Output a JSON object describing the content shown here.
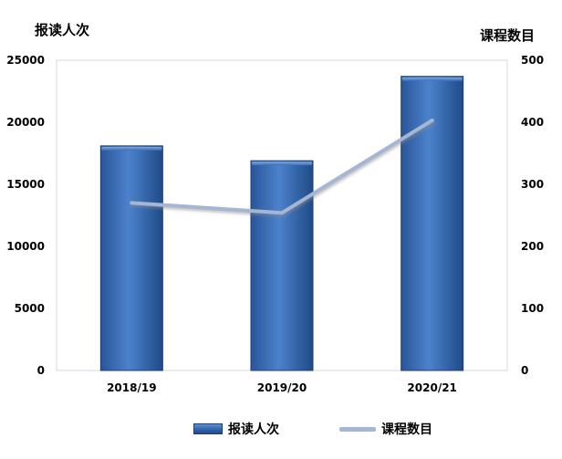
{
  "chart_data": {
    "type": "bar+line",
    "categories": [
      "2018/19",
      "2019/20",
      "2020/21"
    ],
    "series": [
      {
        "name": "报读人次",
        "type": "bar",
        "axis": "left",
        "values": [
          18100,
          16900,
          23700
        ],
        "color": "#2f62a8"
      },
      {
        "name": "课程数目",
        "type": "line",
        "axis": "right",
        "values": [
          270,
          254,
          403
        ],
        "color": "#a4b6d4"
      }
    ],
    "y_left": {
      "label": "报读人次",
      "ylim": [
        0,
        25000
      ],
      "ticks": [
        "0",
        "5000",
        "10000",
        "15000",
        "20000",
        "25000"
      ]
    },
    "y_right": {
      "label": "课程数目",
      "ylim": [
        0,
        500
      ],
      "ticks": [
        "0",
        "100",
        "200",
        "300",
        "400",
        "500"
      ]
    },
    "grid": false,
    "legend": "bottom"
  }
}
